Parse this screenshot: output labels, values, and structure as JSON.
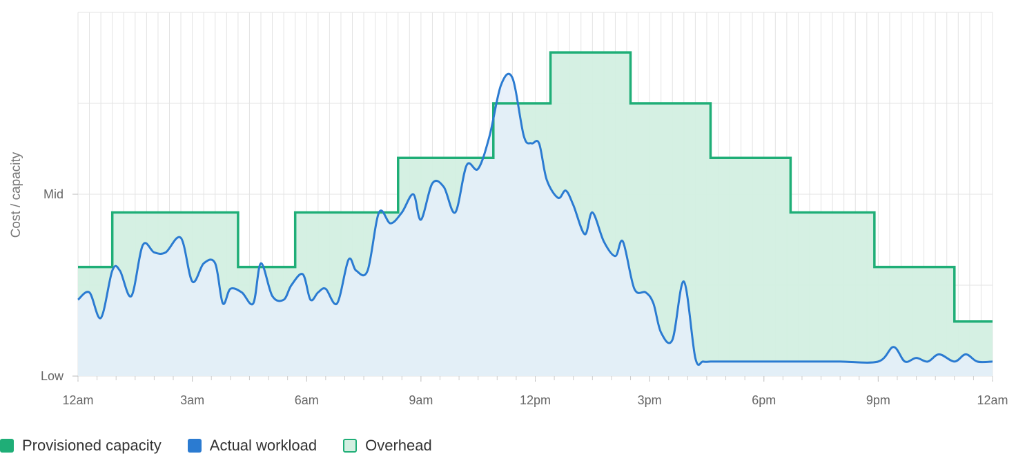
{
  "colors": {
    "provisioned": "#1fae77",
    "workload": "#2b7bd1",
    "overhead_fill": "#d3efe1",
    "workload_fill": "#e5eefa",
    "grid": "#e3e3e3"
  },
  "chart_data": {
    "type": "line",
    "title": "",
    "xlabel": "",
    "ylabel": "Cost / capacity",
    "x_unit": "hours",
    "xlim": [
      0,
      24
    ],
    "ylim": [
      0,
      1
    ],
    "x_ticks": [
      {
        "x": 0,
        "label": "12am"
      },
      {
        "x": 3,
        "label": "3am"
      },
      {
        "x": 6,
        "label": "6am"
      },
      {
        "x": 9,
        "label": "9am"
      },
      {
        "x": 12,
        "label": "12pm"
      },
      {
        "x": 15,
        "label": "3pm"
      },
      {
        "x": 18,
        "label": "6pm"
      },
      {
        "x": 21,
        "label": "9pm"
      },
      {
        "x": 24,
        "label": "12am"
      }
    ],
    "y_ticks": [
      {
        "y": 0,
        "label": "Low"
      },
      {
        "y": 0.5,
        "label": "Mid"
      }
    ],
    "grid": true,
    "legend_position": "bottom-left",
    "legend": [
      {
        "name": "Provisioned capacity",
        "color": "#1fae77",
        "style": "filled"
      },
      {
        "name": "Actual workload",
        "color": "#2b7bd1",
        "style": "filled"
      },
      {
        "name": "Overhead",
        "color": "#d3efe1",
        "style": "outlined"
      }
    ],
    "series": [
      {
        "name": "Provisioned capacity",
        "kind": "step",
        "x": [
          0,
          0.9,
          4.2,
          5.7,
          8.4,
          10.9,
          12.4,
          14.5,
          16.6,
          18.7,
          20.9,
          23.0,
          24
        ],
        "values": [
          0.3,
          0.45,
          0.3,
          0.45,
          0.6,
          0.75,
          0.89,
          0.75,
          0.6,
          0.45,
          0.3,
          0.15,
          0.15
        ]
      },
      {
        "name": "Actual workload",
        "kind": "smooth",
        "x": [
          0,
          0.3,
          0.6,
          0.9,
          1.1,
          1.4,
          1.7,
          2.0,
          2.3,
          2.7,
          3.0,
          3.3,
          3.6,
          3.8,
          4.0,
          4.3,
          4.6,
          4.8,
          5.1,
          5.4,
          5.6,
          5.9,
          6.1,
          6.3,
          6.5,
          6.8,
          7.1,
          7.3,
          7.6,
          7.9,
          8.2,
          8.5,
          8.8,
          9.0,
          9.3,
          9.6,
          9.9,
          10.2,
          10.5,
          10.8,
          11.1,
          11.4,
          11.7,
          11.9,
          12.1,
          12.3,
          12.6,
          12.8,
          13.0,
          13.3,
          13.5,
          13.8,
          14.1,
          14.3,
          14.6,
          14.9,
          15.1,
          15.3,
          15.6,
          15.9,
          16.2,
          16.4,
          16.6,
          16.8,
          17.1,
          17.5,
          18.0,
          19.0,
          20.0,
          21.0,
          21.4,
          21.7,
          22.0,
          22.3,
          22.6,
          23.0,
          23.3,
          23.6,
          24.0
        ],
        "values": [
          0.21,
          0.23,
          0.16,
          0.29,
          0.29,
          0.22,
          0.36,
          0.34,
          0.34,
          0.38,
          0.26,
          0.31,
          0.31,
          0.2,
          0.24,
          0.23,
          0.2,
          0.31,
          0.22,
          0.21,
          0.25,
          0.28,
          0.21,
          0.23,
          0.24,
          0.2,
          0.32,
          0.29,
          0.29,
          0.45,
          0.42,
          0.45,
          0.5,
          0.43,
          0.53,
          0.52,
          0.45,
          0.58,
          0.57,
          0.66,
          0.8,
          0.82,
          0.66,
          0.64,
          0.64,
          0.54,
          0.49,
          0.51,
          0.47,
          0.39,
          0.45,
          0.37,
          0.33,
          0.37,
          0.24,
          0.23,
          0.2,
          0.12,
          0.1,
          0.26,
          0.05,
          0.04,
          0.04,
          0.04,
          0.04,
          0.04,
          0.04,
          0.04,
          0.04,
          0.04,
          0.08,
          0.04,
          0.05,
          0.04,
          0.06,
          0.04,
          0.06,
          0.04,
          0.04
        ]
      }
    ]
  }
}
